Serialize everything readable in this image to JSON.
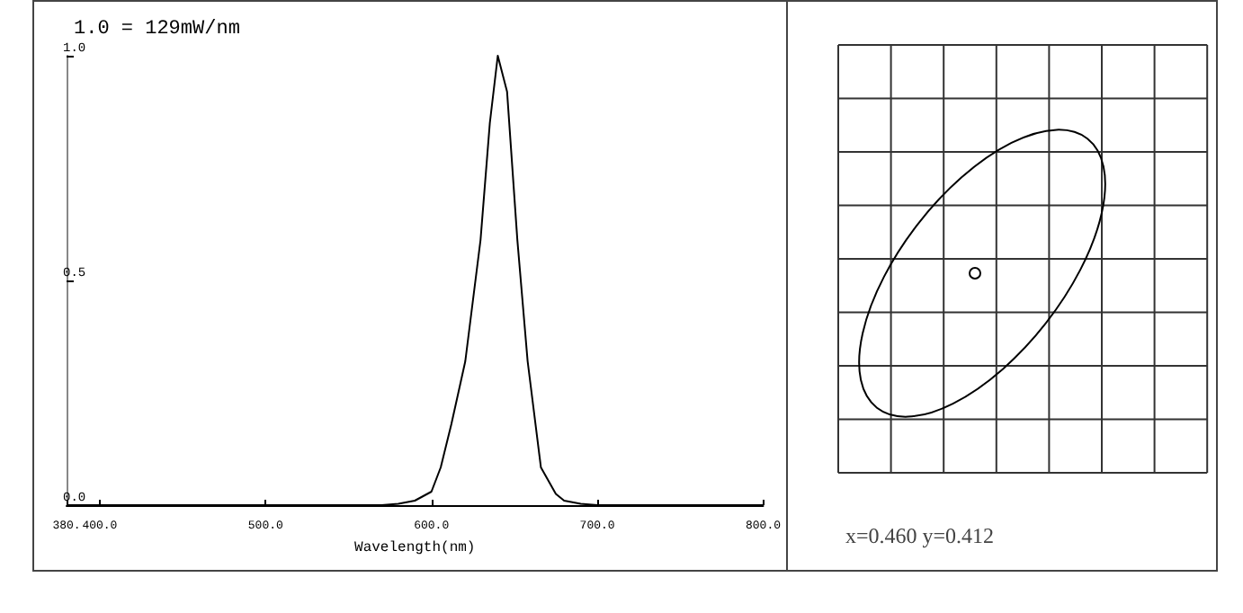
{
  "chart_data": [
    {
      "type": "line",
      "xlabel": "Wavelength(nm)",
      "annotations": [
        "1.0 = 129mW/nm"
      ],
      "series": [
        {
          "color": "#000000",
          "x": [
            380,
            500,
            570,
            580,
            590,
            600,
            605.6,
            612,
            620.4,
            629.6,
            635.2,
            640,
            645.6,
            651.8,
            658,
            666,
            675,
            680,
            690,
            700,
            800
          ],
          "values": [
            0,
            0,
            0,
            0.003,
            0.01,
            0.03,
            0.084,
            0.18,
            0.32,
            0.59,
            0.85,
            1.0,
            0.92,
            0.59,
            0.32,
            0.084,
            0.025,
            0.01,
            0.003,
            0,
            0
          ]
        }
      ],
      "xlim": [
        380,
        800
      ],
      "xticks": [
        {
          "value": 380,
          "label": "380."
        },
        {
          "value": 400,
          "label": "400.0"
        },
        {
          "value": 500,
          "label": "500.0"
        },
        {
          "value": 600,
          "label": "600.0"
        },
        {
          "value": 700,
          "label": "700.0"
        },
        {
          "value": 800,
          "label": "800.0"
        }
      ],
      "ylim": [
        0,
        1
      ],
      "yticks": [
        {
          "value": 0,
          "label": "0.0"
        },
        {
          "value": 0.5,
          "label": "0.5"
        },
        {
          "value": 1,
          "label": "1.0"
        }
      ],
      "grid": false,
      "marker": "none",
      "line_style": "solid"
    },
    {
      "type": "other",
      "annotations": [
        "x=0.460 y=0.412"
      ]
    }
  ]
}
